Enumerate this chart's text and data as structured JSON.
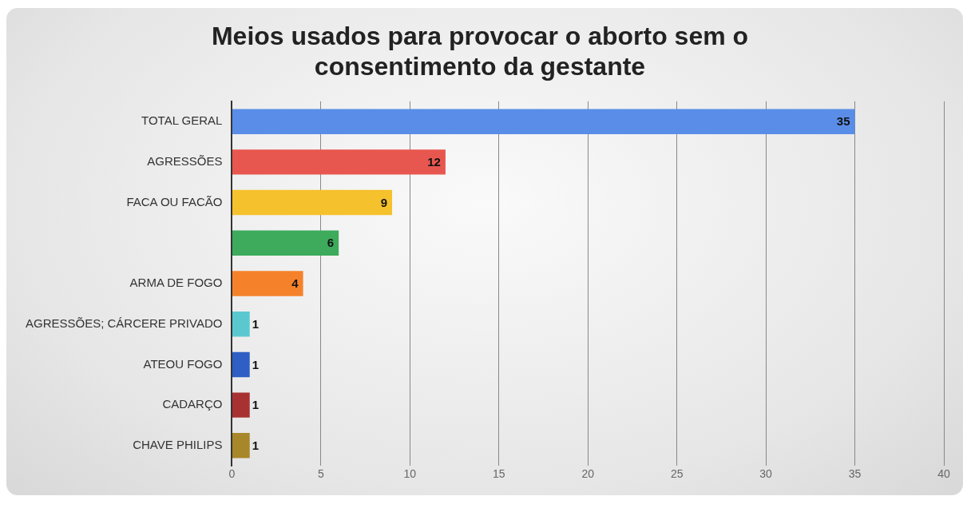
{
  "chart_data": {
    "type": "bar",
    "orientation": "horizontal",
    "title": "Meios usados para provocar o aborto sem o consentimento da gestante",
    "categories": [
      "TOTAL GERAL",
      "AGRESSÕES",
      "FACA OU FACÃO",
      null,
      "ARMA DE FOGO",
      "AGRESSÕES; CÁRCERE PRIVADO",
      "ATEOU FOGO",
      "CADARÇO",
      "CHAVE PHILIPS"
    ],
    "values": [
      35,
      12,
      9,
      6,
      4,
      1,
      1,
      1,
      1
    ],
    "colors": [
      "#5a8de8",
      "#e8574f",
      "#f5c12c",
      "#3daa5c",
      "#f5822a",
      "#5bc8d0",
      "#2f5fc4",
      "#a83232",
      "#a8862a"
    ],
    "xlim": [
      0,
      40
    ],
    "xticks": [
      0,
      5,
      10,
      15,
      20,
      25,
      30,
      35,
      40
    ],
    "grid": "x",
    "legend": false,
    "data_labels": true
  }
}
